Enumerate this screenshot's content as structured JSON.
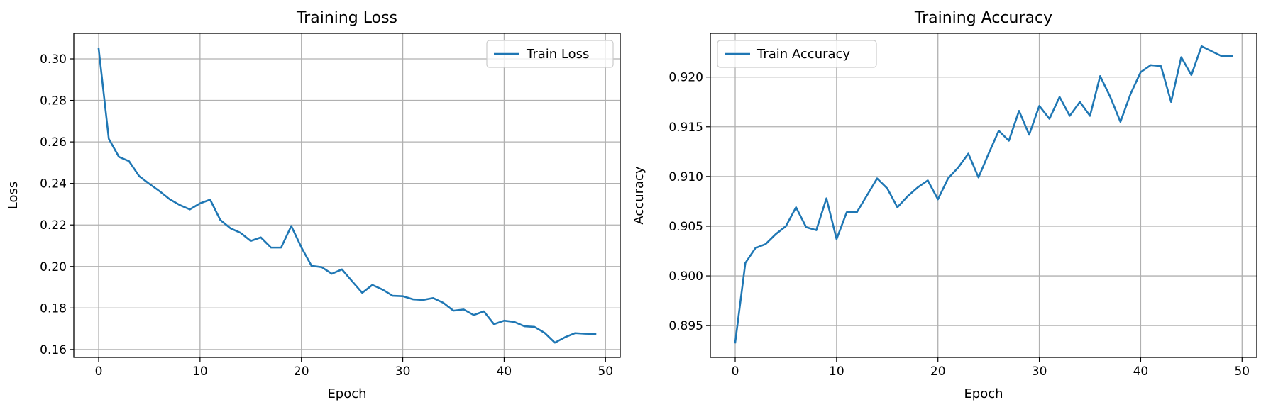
{
  "chart_data": [
    {
      "type": "line",
      "title": "Training Loss",
      "xlabel": "Epoch",
      "ylabel": "Loss",
      "xlim": [
        -2.45,
        51.45
      ],
      "ylim": [
        0.1562,
        0.3123
      ],
      "xticks": [
        0,
        10,
        20,
        30,
        40,
        50
      ],
      "xtick_labels": [
        "0",
        "10",
        "20",
        "30",
        "40",
        "50"
      ],
      "yticks": [
        0.16,
        0.18,
        0.2,
        0.22,
        0.24,
        0.26,
        0.28,
        0.3
      ],
      "ytick_labels": [
        "0.16",
        "0.18",
        "0.20",
        "0.22",
        "0.24",
        "0.26",
        "0.28",
        "0.30"
      ],
      "grid": true,
      "legend_position": "upper right",
      "series": [
        {
          "name": "Train Loss",
          "color": "#1f77b4",
          "x": [
            0,
            1,
            2,
            3,
            4,
            5,
            6,
            7,
            8,
            9,
            10,
            11,
            12,
            13,
            14,
            15,
            16,
            17,
            18,
            19,
            20,
            21,
            22,
            23,
            24,
            25,
            26,
            27,
            28,
            29,
            30,
            31,
            32,
            33,
            34,
            35,
            36,
            37,
            38,
            39,
            40,
            41,
            42,
            43,
            44,
            45,
            46,
            47,
            48,
            49
          ],
          "y": [
            0.305,
            0.2615,
            0.2528,
            0.2507,
            0.2435,
            0.2398,
            0.2363,
            0.2324,
            0.2296,
            0.2275,
            0.2304,
            0.2322,
            0.2224,
            0.2184,
            0.2162,
            0.2123,
            0.214,
            0.2091,
            0.2091,
            0.2195,
            0.2092,
            0.2003,
            0.1997,
            0.1965,
            0.1986,
            0.1929,
            0.1873,
            0.1911,
            0.1889,
            0.1859,
            0.1857,
            0.1842,
            0.1839,
            0.1848,
            0.1825,
            0.1787,
            0.1793,
            0.1766,
            0.1784,
            0.1722,
            0.1739,
            0.1733,
            0.1712,
            0.1709,
            0.168,
            0.1633,
            0.1659,
            0.1679,
            0.1676,
            0.1675
          ]
        }
      ]
    },
    {
      "type": "line",
      "title": "Training Accuracy",
      "xlabel": "Epoch",
      "ylabel": "Accuracy",
      "xlim": [
        -2.45,
        51.45
      ],
      "ylim": [
        0.8918,
        0.9244
      ],
      "xticks": [
        0,
        10,
        20,
        30,
        40,
        50
      ],
      "xtick_labels": [
        "0",
        "10",
        "20",
        "30",
        "40",
        "50"
      ],
      "yticks": [
        0.895,
        0.9,
        0.905,
        0.91,
        0.915,
        0.92
      ],
      "ytick_labels": [
        "0.895",
        "0.900",
        "0.905",
        "0.910",
        "0.915",
        "0.920"
      ],
      "grid": true,
      "legend_position": "upper left",
      "series": [
        {
          "name": "Train Accuracy",
          "color": "#1f77b4",
          "x": [
            0,
            1,
            2,
            3,
            4,
            5,
            6,
            7,
            8,
            9,
            10,
            11,
            12,
            13,
            14,
            15,
            16,
            17,
            18,
            19,
            20,
            21,
            22,
            23,
            24,
            25,
            26,
            27,
            28,
            29,
            30,
            31,
            32,
            33,
            34,
            35,
            36,
            37,
            38,
            39,
            40,
            41,
            42,
            43,
            44,
            45,
            46,
            47,
            48,
            49
          ],
          "y": [
            0.8933,
            0.9013,
            0.9028,
            0.9032,
            0.9042,
            0.905,
            0.9069,
            0.9049,
            0.9046,
            0.9078,
            0.9037,
            0.9064,
            0.9064,
            0.9081,
            0.9098,
            0.9088,
            0.9069,
            0.908,
            0.9089,
            0.9096,
            0.9077,
            0.9098,
            0.9109,
            0.9123,
            0.9099,
            0.9123,
            0.9146,
            0.9136,
            0.9166,
            0.9142,
            0.9171,
            0.9158,
            0.918,
            0.9161,
            0.9175,
            0.9161,
            0.9201,
            0.918,
            0.9155,
            0.9183,
            0.9205,
            0.9212,
            0.9211,
            0.9175,
            0.922,
            0.9202,
            0.9231,
            0.9226,
            0.9221,
            0.9221
          ]
        }
      ]
    }
  ]
}
